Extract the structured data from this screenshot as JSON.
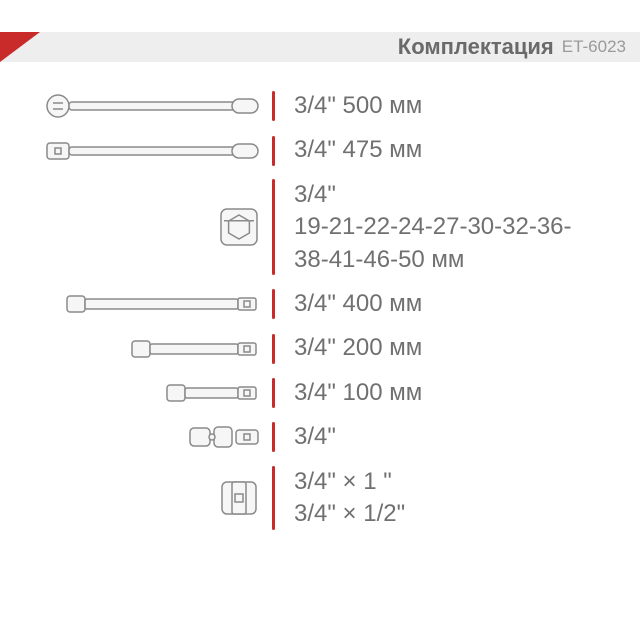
{
  "header": {
    "title": "Комплектация",
    "code": "ET-6023",
    "bar_bg": "#eeeeee",
    "triangle_color": "#c92a2a",
    "title_color": "#6a6a6a",
    "code_color": "#9a9a9a",
    "title_fontsize": 22,
    "code_fontsize": 17
  },
  "style": {
    "divider_color": "#c92a2a",
    "divider_width": 3,
    "spec_color": "#707070",
    "spec_fontsize": 24,
    "tool_stroke": "#8a8a8a",
    "tool_fill": "#f6f6f6",
    "background": "#ffffff",
    "row_gap": 12
  },
  "items": [
    {
      "spec": "3/4\" 500 мм",
      "divider_h": 30,
      "tool": "ratchet",
      "tool_w": 215,
      "tool_h": 30
    },
    {
      "spec": "3/4\" 475 мм",
      "divider_h": 30,
      "tool": "breaker",
      "tool_w": 215,
      "tool_h": 30
    },
    {
      "spec": "3/4\"\n19-21-22-24-27-30-32-36-\n38-41-46-50 мм",
      "divider_h": 96,
      "tool": "socket",
      "tool_w": 42,
      "tool_h": 42
    },
    {
      "spec": "3/4\"   400 мм",
      "divider_h": 30,
      "tool": "ext",
      "tool_w": 195,
      "tool_h": 22
    },
    {
      "spec": "3/4\"   200 мм",
      "divider_h": 30,
      "tool": "ext",
      "tool_w": 130,
      "tool_h": 22
    },
    {
      "spec": "3/4\"   100 мм",
      "divider_h": 30,
      "tool": "ext",
      "tool_w": 95,
      "tool_h": 22
    },
    {
      "spec": "3/4\"",
      "divider_h": 30,
      "tool": "ujoint",
      "tool_w": 72,
      "tool_h": 28
    },
    {
      "spec": "3/4\" ×   1 \"\n3/4\" × 1/2\"",
      "divider_h": 64,
      "tool": "adapter",
      "tool_w": 42,
      "tool_h": 40
    }
  ]
}
